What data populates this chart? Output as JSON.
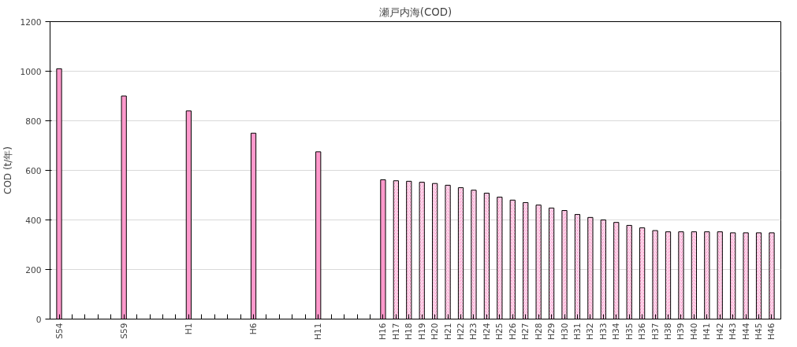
{
  "chart_data": {
    "type": "bar",
    "title": "瀬戸内海(COD)",
    "ylabel": "COD (t/年)",
    "categories": [
      "S54",
      null,
      null,
      null,
      null,
      "S59",
      null,
      null,
      null,
      null,
      "H1",
      null,
      null,
      null,
      null,
      "H6",
      null,
      null,
      null,
      null,
      "H11",
      null,
      null,
      null,
      null,
      "H16",
      "H17",
      "H18",
      "H19",
      "H20",
      "H21",
      "H22",
      "H23",
      "H24",
      "H25",
      "H26",
      "H27",
      "H28",
      "H29",
      "H30",
      "H31",
      "H32",
      "H33",
      "H34",
      "H35",
      "H36",
      "H37",
      "H38",
      "H39",
      "H40",
      "H41",
      "H42",
      "H43",
      "H44",
      "H45",
      "H46"
    ],
    "series": [
      {
        "color": "#ff99cc",
        "values": [
          1010,
          null,
          null,
          null,
          null,
          900,
          null,
          null,
          null,
          null,
          840,
          null,
          null,
          null,
          null,
          750,
          null,
          null,
          null,
          null,
          675,
          null,
          null,
          null,
          null,
          562,
          null,
          null,
          null,
          null,
          null,
          null,
          null,
          null,
          null,
          null,
          null,
          null,
          null,
          null,
          null,
          null,
          null,
          null,
          null,
          null,
          null,
          null,
          null,
          null,
          null,
          null,
          null,
          null,
          null,
          null
        ]
      },
      {
        "color": "#ff99cc",
        "values": [
          null,
          null,
          null,
          null,
          null,
          null,
          null,
          null,
          null,
          null,
          null,
          null,
          null,
          null,
          null,
          null,
          null,
          null,
          null,
          null,
          null,
          null,
          null,
          null,
          null,
          null,
          558,
          556,
          552,
          547,
          540,
          530,
          520,
          508,
          492,
          480,
          470,
          460,
          448,
          438,
          422,
          410,
          400,
          390,
          378,
          368,
          357,
          352,
          352,
          352,
          352,
          352,
          348,
          348,
          348,
          348
        ]
      }
    ],
    "ylim": [
      0,
      1200
    ],
    "yticks": [
      0,
      200,
      400,
      600,
      800,
      1000,
      1200
    ],
    "grid": "y"
  }
}
